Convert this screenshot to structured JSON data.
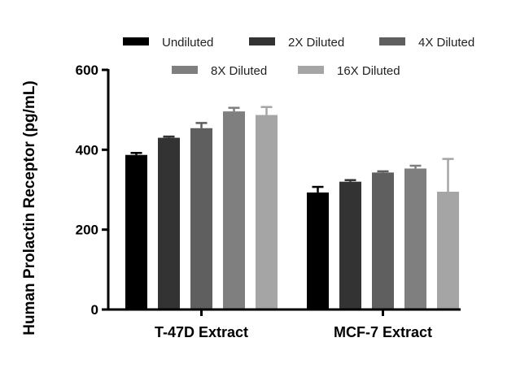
{
  "chart_data": {
    "type": "bar",
    "title": "",
    "xlabel": "",
    "ylabel": "Human Prolactin Receptor (pg/mL)",
    "ylim": [
      0,
      600
    ],
    "yticks": [
      0,
      200,
      400,
      600
    ],
    "grid": false,
    "legend_position": "top",
    "categories": [
      "T-47D Extract",
      "MCF-7 Extract"
    ],
    "series": [
      {
        "name": "Undiluted",
        "values": [
          387,
          293
        ],
        "errors": [
          5,
          14
        ],
        "color": "#000000"
      },
      {
        "name": "2X Diluted",
        "values": [
          430,
          320
        ],
        "errors": [
          3,
          4
        ],
        "color": "#333333"
      },
      {
        "name": "4X Diluted",
        "values": [
          454,
          343
        ],
        "errors": [
          13,
          3
        ],
        "color": "#5f5f5f"
      },
      {
        "name": "8X Diluted",
        "values": [
          496,
          353
        ],
        "errors": [
          9,
          7
        ],
        "color": "#7f7f7f"
      },
      {
        "name": "16X Diluted",
        "values": [
          487,
          295
        ],
        "errors": [
          20,
          82
        ],
        "color": "#a5a5a5"
      }
    ]
  }
}
